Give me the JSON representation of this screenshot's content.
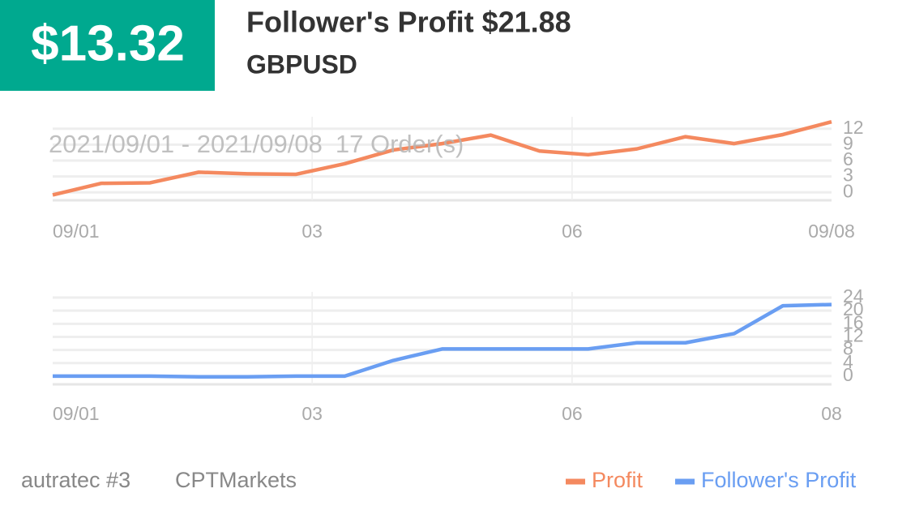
{
  "header": {
    "profit": "$13.32",
    "title": "Follower's Profit $21.88",
    "symbol": "GBPUSD"
  },
  "period": "2021/09/01 - 2021/09/08",
  "orders": "17 Order(s)",
  "footer": {
    "account": "autratec #3",
    "broker": "CPTMarkets"
  },
  "chart_data": [
    {
      "type": "line",
      "x": [
        0,
        1,
        2,
        3,
        4,
        5,
        6,
        7,
        8,
        9,
        10,
        11,
        12,
        13,
        14,
        15,
        16
      ],
      "series": [
        {
          "name": "Profit",
          "color": "#f4895f",
          "values": [
            -0.5,
            1.7,
            1.8,
            3.8,
            3.5,
            3.4,
            5.4,
            8.0,
            9.2,
            10.8,
            7.8,
            7.1,
            8.2,
            10.5,
            9.2,
            10.9,
            13.32
          ]
        }
      ],
      "xlim": [
        0,
        16
      ],
      "xticks": [
        {
          "value": 0,
          "label": "09/01"
        },
        {
          "value": 5.33,
          "label": "03"
        },
        {
          "value": 10.67,
          "label": "06"
        },
        {
          "value": 16,
          "label": "09/08"
        }
      ],
      "ylim": [
        -1.5,
        13.5
      ],
      "yticks": [
        0,
        3,
        6,
        9,
        12
      ],
      "grid": true
    },
    {
      "type": "line",
      "x": [
        0,
        1,
        2,
        3,
        4,
        5,
        6,
        7,
        8,
        9,
        10,
        11,
        12,
        13,
        14,
        15,
        16
      ],
      "series": [
        {
          "name": "Follower's Profit",
          "color": "#6a9ef2",
          "values": [
            0,
            0,
            0,
            -0.2,
            -0.2,
            0,
            0,
            4.8,
            8.3,
            8.3,
            8.3,
            8.3,
            10.2,
            10.2,
            13,
            21.5,
            21.88
          ]
        }
      ],
      "xlim": [
        0,
        16
      ],
      "xticks": [
        {
          "value": 0,
          "label": "09/01"
        },
        {
          "value": 5.33,
          "label": "03"
        },
        {
          "value": 10.67,
          "label": "06"
        },
        {
          "value": 16,
          "label": "08"
        }
      ],
      "ylim": [
        -2.5,
        24.5
      ],
      "yticks": [
        0,
        4,
        8,
        12,
        16,
        20,
        24
      ],
      "grid": true
    }
  ]
}
